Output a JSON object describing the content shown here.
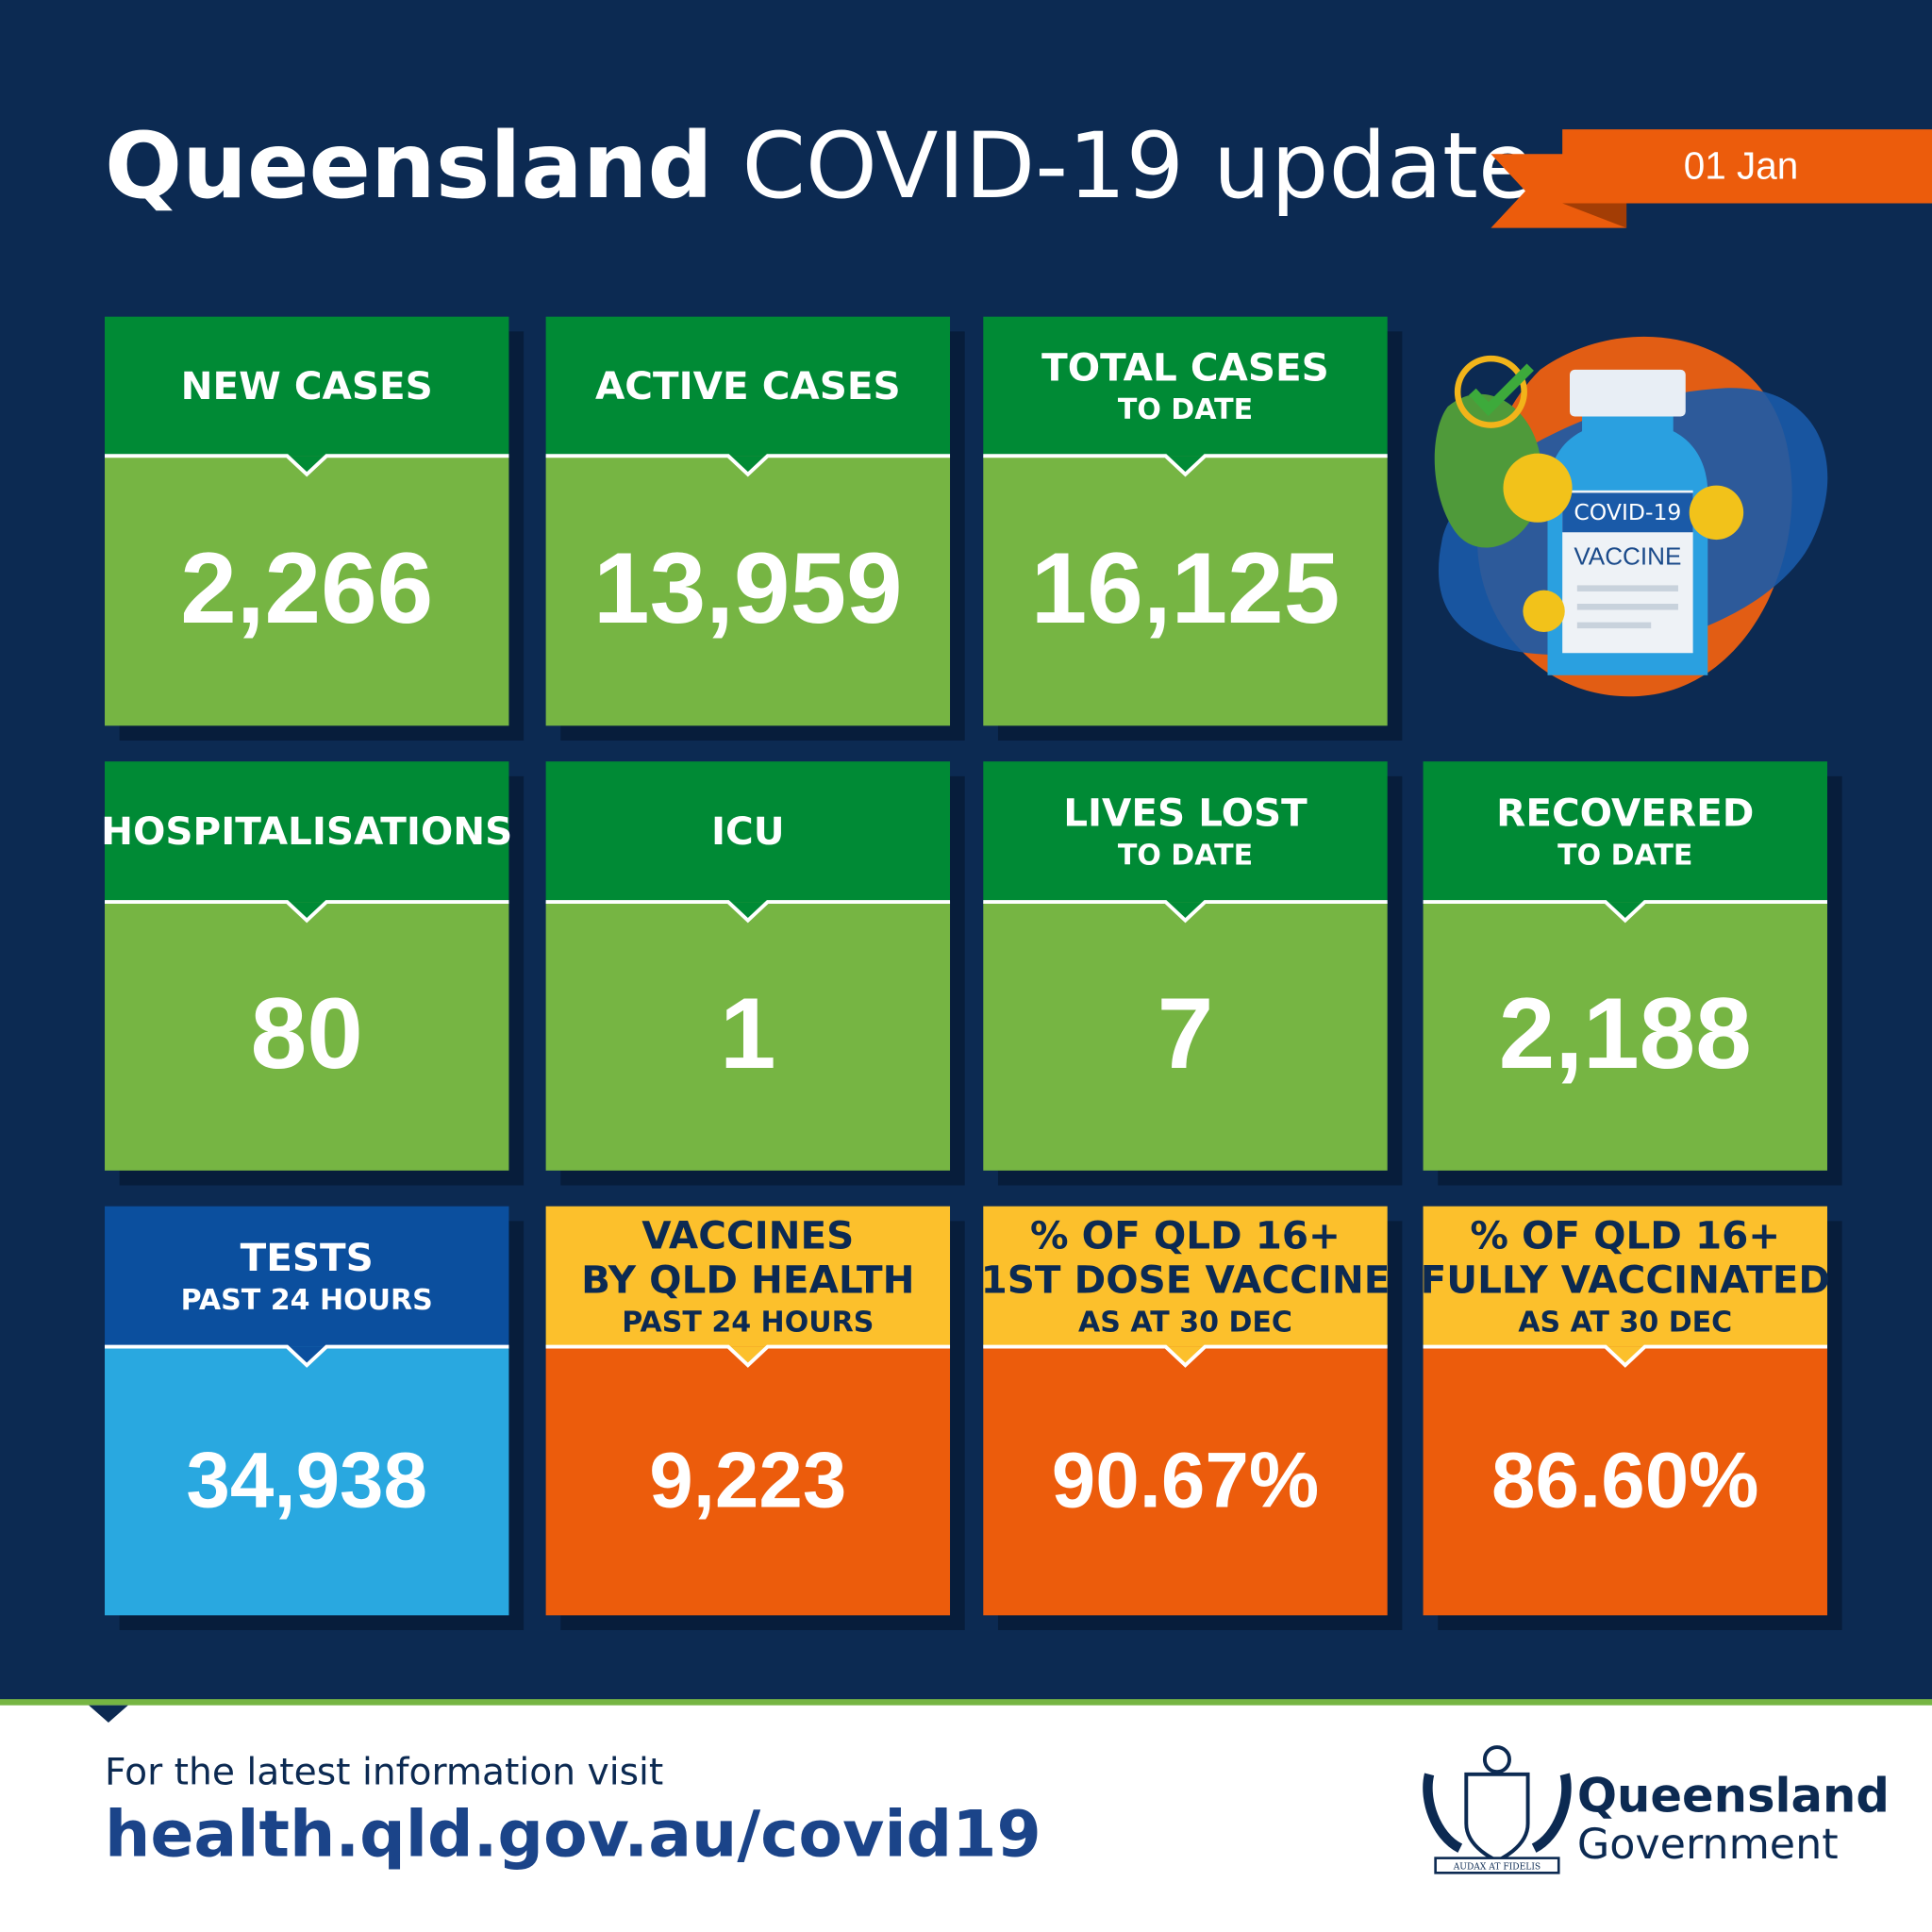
{
  "header": {
    "title_bold": "Queensland",
    "title_rest": "COVID-19 update",
    "date": "01 Jan"
  },
  "illustration": {
    "labels": [
      "COVID-19",
      "VACCINE"
    ]
  },
  "tiles": [
    [
      {
        "label": [
          "NEW CASES"
        ],
        "value": "2,266"
      },
      {
        "label": [
          "ACTIVE CASES"
        ],
        "value": "13,959"
      },
      {
        "label": [
          "TOTAL CASES"
        ],
        "sublabel": [
          "TO DATE"
        ],
        "value": "16,125"
      }
    ],
    [
      {
        "label": [
          "HOSPITALISATIONS"
        ],
        "value": "80"
      },
      {
        "label": [
          "ICU"
        ],
        "value": "1"
      },
      {
        "label": [
          "LIVES LOST"
        ],
        "sublabel": [
          "TO DATE"
        ],
        "value": "7"
      },
      {
        "label": [
          "RECOVERED"
        ],
        "sublabel": [
          "TO DATE"
        ],
        "value": "2,188"
      }
    ],
    [
      {
        "label": [
          "TESTS"
        ],
        "sublabel": [
          "PAST 24 HOURS"
        ],
        "value": "34,938"
      },
      {
        "label": [
          "VACCINES",
          "BY QLD HEALTH"
        ],
        "sublabel": [
          "PAST 24 HOURS"
        ],
        "value": "9,223"
      },
      {
        "label": [
          "% OF QLD 16+",
          "1ST DOSE VACCINE"
        ],
        "sublabel": [
          "AS AT 30 DEC"
        ],
        "value": "90.67%"
      },
      {
        "label": [
          "% OF QLD 16+",
          "FULLY VACCINATED"
        ],
        "sublabel": [
          "AS AT 30 DEC"
        ],
        "value": "86.60%"
      }
    ]
  ],
  "footer": {
    "intro": "For the latest information visit",
    "url": "health.qld.gov.au/covid19",
    "logo": {
      "line1": "Queensland",
      "line2": "Government",
      "motto": "AUDAX AT FIDELIS"
    }
  }
}
